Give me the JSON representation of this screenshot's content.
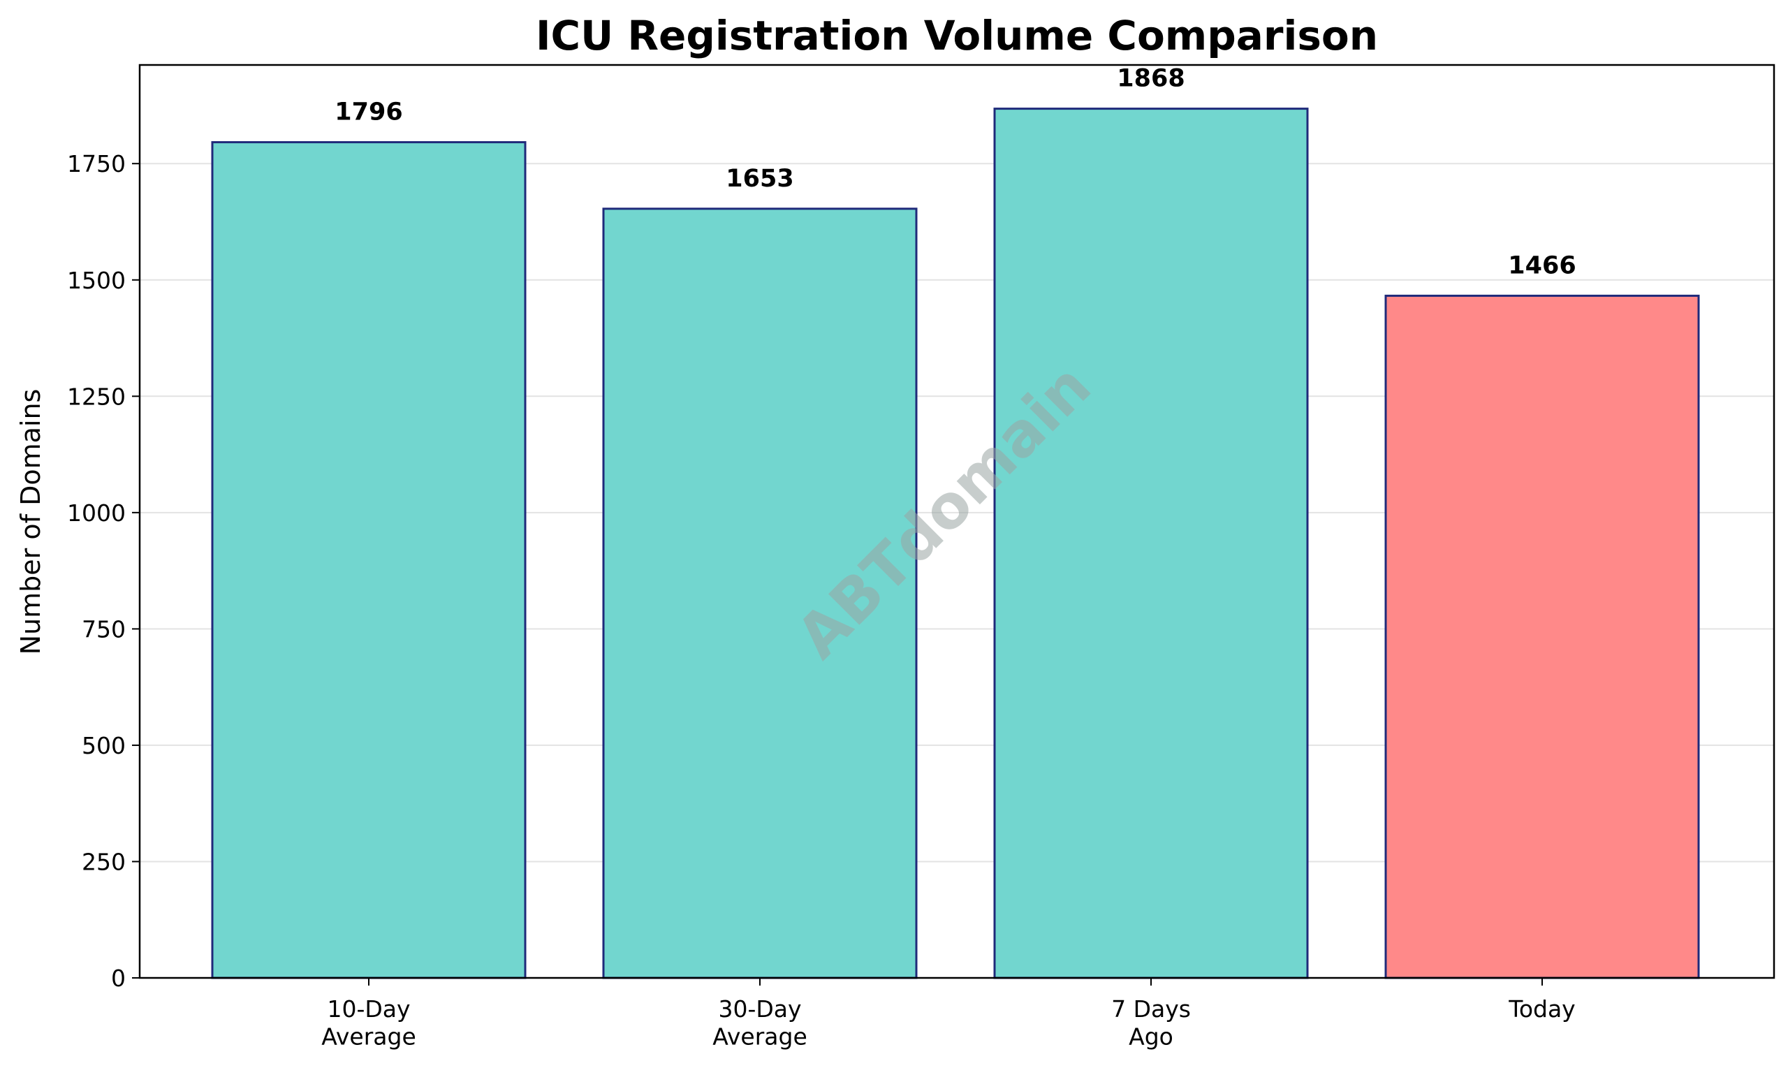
{
  "chart_data": {
    "type": "bar",
    "title": "ICU Registration Volume Comparison",
    "xlabel": "",
    "ylabel": "Number of Domains",
    "categories": [
      "10-Day\nAverage",
      "30-Day\nAverage",
      "7 Days\nAgo",
      "Today"
    ],
    "values": [
      1796,
      1653,
      1868,
      1466
    ],
    "data_labels": [
      "1796",
      "1653",
      "1868",
      "1466"
    ],
    "bar_colors": [
      "#72d6cf",
      "#72d6cf",
      "#72d6cf",
      "#ff8989"
    ],
    "bar_edge_color": "#1f2a7a",
    "ylim": [
      0,
      1962
    ],
    "yticks": [
      0,
      250,
      500,
      750,
      1000,
      1250,
      1500,
      1750
    ],
    "grid": "y",
    "watermark": "ABTdomain"
  }
}
